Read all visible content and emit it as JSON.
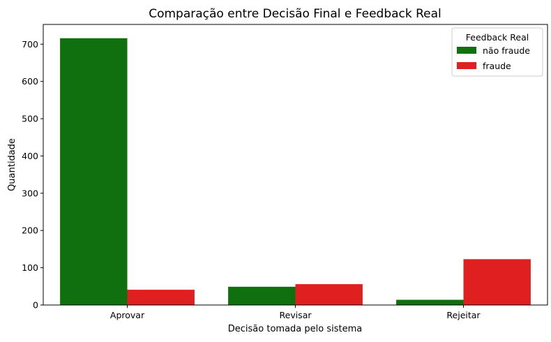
{
  "chart_data": {
    "type": "bar",
    "title": "Comparação entre Decisão Final e Feedback Real",
    "xlabel": "Decisão tomada pelo sistema",
    "ylabel": "Quantidade",
    "categories": [
      "Aprovar",
      "Revisar",
      "Rejeitar"
    ],
    "series": [
      {
        "name": "não fraude",
        "color": "#107010",
        "values": [
          716,
          49,
          14
        ]
      },
      {
        "name": "fraude",
        "color": "#e02020",
        "values": [
          41,
          56,
          123
        ]
      }
    ],
    "ylim": [
      0,
      753
    ],
    "yticks": [
      0,
      100,
      200,
      300,
      400,
      500,
      600,
      700
    ],
    "legend": {
      "title": "Feedback Real",
      "position": "top-right"
    },
    "grid": false
  }
}
